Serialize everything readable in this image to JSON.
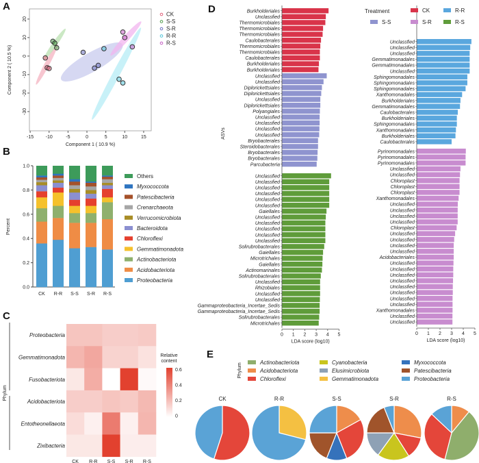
{
  "panel_labels": {
    "A": "A",
    "B": "B",
    "C": "C",
    "D": "D",
    "E": "E"
  },
  "colors": {
    "CK": "#d9344a",
    "S-S": "#8f94cf",
    "S-R": "#c88ccf",
    "R-R": "#5aa7de",
    "R-S": "#5f9c3a",
    "pca": {
      "CK": "#e0607a",
      "S-S": "#4f9a4a",
      "S-R": "#6a6fc0",
      "R-R": "#52c5d8",
      "R-S": "#c55fc4"
    },
    "pca_fill": {
      "CK": "#f4b3c0",
      "S-S": "#b9e0b0",
      "S-R": "#c8cbee",
      "R-R": "#b6ecf5",
      "R-S": "#f2b6ef"
    }
  },
  "chart_data": [
    {
      "panel": "A",
      "type": "scatter",
      "xlabel": "Component 1 ( 10.9 %)",
      "ylabel": "Component 2 ( 10.5 %)",
      "xlim": [
        -15.2,
        17
      ],
      "ylim": [
        -40.4,
        25.5
      ],
      "xticks": [
        -15,
        -10,
        -5,
        0,
        5,
        10,
        15
      ],
      "yticks": [
        20,
        10,
        0,
        -10,
        -20,
        -30
      ],
      "legend_position": "top-right",
      "series": [
        {
          "name": "CK",
          "points": [
            [
              -11,
              -1
            ],
            [
              -10.5,
              -6.3
            ],
            [
              -10,
              -6.7
            ]
          ],
          "ellipse": {
            "cx": -10.6,
            "cy": -4.5,
            "rx": 5.5,
            "ry": 0.8,
            "angle_deg": -62
          }
        },
        {
          "name": "S-S",
          "points": [
            [
              -9,
              8
            ],
            [
              -8.5,
              7
            ],
            [
              -8,
              4.5
            ]
          ],
          "ellipse": {
            "cx": -8.5,
            "cy": 6.5,
            "rx": 4.5,
            "ry": 0.8,
            "angle_deg": -55
          }
        },
        {
          "name": "S-R",
          "points": [
            [
              -1,
              2
            ],
            [
              2,
              -6.5
            ],
            [
              3,
              -5
            ]
          ],
          "ellipse": {
            "cx": 1.3,
            "cy": -3.2,
            "rx": 8.5,
            "ry": 3.2,
            "angle_deg": -30
          }
        },
        {
          "name": "R-R",
          "points": [
            [
              4.5,
              4
            ],
            [
              8.5,
              -12.5
            ],
            [
              9.5,
              -14.5
            ]
          ],
          "ellipse": {
            "cx": 7.8,
            "cy": -9.5,
            "rx": 12.5,
            "ry": 1.2,
            "angle_deg": -62
          }
        },
        {
          "name": "R-S",
          "points": [
            [
              9.5,
              13
            ],
            [
              10,
              10
            ],
            [
              12,
              5
            ]
          ],
          "ellipse": {
            "cx": 10.3,
            "cy": 9.5,
            "rx": 5.5,
            "ry": 1,
            "angle_deg": -48
          }
        }
      ]
    },
    {
      "panel": "B",
      "type": "bar",
      "stacked": true,
      "ylabel": "Percent",
      "ylim": [
        0,
        1
      ],
      "yticks": [
        "0.0",
        "0.2",
        "0.4",
        "0.6",
        "0.8",
        "1.0"
      ],
      "categories": [
        "CK",
        "R-R",
        "S-S",
        "S-R",
        "R-S"
      ],
      "legend_position": "right",
      "series": [
        {
          "name": "Proteobacteria",
          "color": "#4f9ed2",
          "values": [
            0.36,
            0.39,
            0.32,
            0.33,
            0.31
          ]
        },
        {
          "name": "Acidobacteriota",
          "color": "#ef8c45",
          "values": [
            0.18,
            0.18,
            0.21,
            0.2,
            0.25
          ]
        },
        {
          "name": "Actinobacteriota",
          "color": "#8fb06d",
          "values": [
            0.11,
            0.1,
            0.08,
            0.08,
            0.14
          ]
        },
        {
          "name": "Gemmatimonadota",
          "color": "#f5c12c",
          "values": [
            0.09,
            0.11,
            0.06,
            0.06,
            0.04
          ]
        },
        {
          "name": "Chloroflexi",
          "color": "#e5402e",
          "values": [
            0.05,
            0.04,
            0.05,
            0.06,
            0.07
          ]
        },
        {
          "name": "Bacteroidota",
          "color": "#8b8fd0",
          "values": [
            0.05,
            0.04,
            0.06,
            0.04,
            0.03
          ]
        },
        {
          "name": "Verrucomicrobiota",
          "color": "#a88d26",
          "values": [
            0.025,
            0.02,
            0.03,
            0.03,
            0.02
          ]
        },
        {
          "name": "Crenarchaeota",
          "color": "#a6a6a6",
          "values": [
            0.02,
            0.02,
            0.03,
            0.03,
            0.03
          ]
        },
        {
          "name": "Patescibacteria",
          "color": "#a5512a",
          "values": [
            0.02,
            0.02,
            0.03,
            0.03,
            0.02
          ]
        },
        {
          "name": "Myxococcota",
          "color": "#2e74c0",
          "values": [
            0.015,
            0.015,
            0.02,
            0.01,
            0.01
          ]
        },
        {
          "name": "Others",
          "color": "#3d9b5a",
          "values": [
            0.08,
            0.065,
            0.11,
            0.13,
            0.08
          ]
        }
      ]
    },
    {
      "panel": "C",
      "type": "heatmap",
      "ylabel": "Phylum",
      "columns": [
        "CK",
        "R-R",
        "S-S",
        "S-R",
        "R-S"
      ],
      "rows": [
        "Proteobacteria",
        "Gemmatimonadota",
        "Fusobacteriota",
        "Acidobacteriota",
        "Entotheonellaeota",
        "Zixibacteria"
      ],
      "values": [
        [
          0.2,
          0.2,
          0.17,
          0.17,
          0.18
        ],
        [
          0.25,
          0.3,
          0.15,
          0.15,
          0.1
        ],
        [
          0.08,
          0.28,
          0.0,
          0.65,
          0.02
        ],
        [
          0.17,
          0.17,
          0.2,
          0.18,
          0.24
        ],
        [
          0.12,
          0.05,
          0.45,
          0.05,
          0.25
        ],
        [
          0.08,
          0.08,
          0.65,
          0.06,
          0.06
        ]
      ],
      "colorbar": {
        "title": [
          "Relative",
          "content"
        ],
        "ticks": [
          "0.6",
          "0.4",
          "0.2",
          "0"
        ],
        "range": [
          0,
          0.65
        ],
        "low": "#ffffff",
        "high": "#e2412f"
      }
    },
    {
      "panel": "D",
      "type": "bar",
      "orientation": "horizontal",
      "ylabel": "ASVs",
      "xlabel": "LDA score (log10)",
      "xlim": [
        0,
        5
      ],
      "xticks": [
        "0",
        "1",
        "2",
        "3",
        "4",
        "5"
      ],
      "legend_title": "Treatment",
      "legend_position": "top-right",
      "legend_order": [
        "CK",
        "R-R",
        "S-S",
        "S-R",
        "R-S"
      ],
      "columns": [
        [
          {
            "group": "CK",
            "labels": [
              "Burkholderiales",
              "Unclassfied",
              "Thermomicrobiales",
              "Thermomicrobiales",
              "Thermomicrobiales",
              "Caulobacterales",
              "Thermomicrobiales",
              "Thermomicrobiales",
              "Caulobacterales",
              "Burkholderiales",
              "Burkholderiales"
            ],
            "values": [
              4.08,
              3.84,
              3.8,
              3.6,
              3.56,
              3.42,
              3.36,
              3.32,
              3.32,
              3.24,
              3.2
            ]
          },
          {
            "group": "S-S",
            "labels": [
              "Unclassfied",
              "Unclassfied",
              "Diplorickettsiales",
              "Diplorickettsiales",
              "Unclassfied",
              "Diplorickettsiales",
              "Polyangiales",
              "Unclassfied",
              "Unclassfied",
              "Unclassfied",
              "Unclassfied",
              "Bryobacterales",
              "Steroidobacterales",
              "Bryobacterales",
              "Bryobacterales",
              "Parcubacteria"
            ],
            "values": [
              3.92,
              3.64,
              3.5,
              3.44,
              3.36,
              3.36,
              3.32,
              3.3,
              3.3,
              3.28,
              3.26,
              3.16,
              3.16,
              3.12,
              3.1,
              3.04
            ]
          },
          {
            "group": "R-S",
            "labels": [
              "Unclassfied",
              "Unclassfied",
              "Unclassfied",
              "Unclassfied",
              "Unclassfied",
              "Unclassfied",
              "Gaiellales",
              "Unclassfied",
              "Unclassfied",
              "Unclassfied",
              "Unclassfied",
              "Unclassfied",
              "Solirubrobacterales",
              "Gaiellales",
              "Microtrichales",
              "Gaiellales",
              "Actinomarinales",
              "Solirubrobacterales",
              "Unclassfied",
              "Rhizobiales",
              "Unclassfied",
              "Unclassfied",
              "Gammaproteobacteria_Incertae_Sedis",
              "Gammaproteobacteria_Incertae_Sedis",
              "Solirubrobacterales",
              "Microtrichales"
            ],
            "values": [
              4.3,
              4.14,
              4.14,
              4.14,
              4.14,
              4.14,
              3.9,
              3.84,
              3.8,
              3.8,
              3.8,
              3.8,
              3.7,
              3.6,
              3.56,
              3.54,
              3.5,
              3.4,
              3.34,
              3.34,
              3.34,
              3.32,
              3.3,
              3.3,
              3.26,
              3.22
            ]
          }
        ],
        [
          {
            "group": "R-R",
            "labels": [
              "Unclassfied",
              "Unclassfied",
              "Unclassfied",
              "Gemmatimonadales",
              "Gemmatimonadales",
              "Unclassfied",
              "Sphingomonadales",
              "Sphingomonadales",
              "Sphingomonadales",
              "Xanthomonadales",
              "Burkholderiales",
              "Gemmatimonadales",
              "Caulobacterales",
              "Burkholderiales",
              "Sphingomonadales",
              "Xanthomonadales",
              "Burkholderiales",
              "Caulobacterales"
            ],
            "values": [
              4.7,
              4.6,
              4.55,
              4.55,
              4.55,
              4.55,
              4.35,
              4.35,
              4.2,
              3.9,
              3.76,
              3.72,
              3.53,
              3.45,
              3.45,
              3.37,
              3.33,
              3.0
            ]
          },
          {
            "group": "S-R",
            "labels": [
              "Pyrinomonadales",
              "Pyrinomonadales",
              "Pyrinomonadales",
              "Unclassfied",
              "Unclassfied",
              "Chloroplast",
              "Chloroplast",
              "Chloroplast",
              "Xanthomonadales",
              "Unclassfied",
              "Unclassfied",
              "Unclassfied",
              "Unclassfied",
              "Chloroplast",
              "Unclassfied",
              "Unclassfied",
              "Unclassfied",
              "Unclassfied",
              "Acidobacteriales",
              "Unclassfied",
              "Unclassfied",
              "Unclassfied",
              "Unclassfied",
              "Unclassfied",
              "Unclassfied",
              "Unclassfied",
              "Unclassfied",
              "Xanthomonadales",
              "Unclassfied",
              "Unclassfied"
            ],
            "values": [
              4.22,
              4.2,
              4.2,
              3.76,
              3.72,
              3.68,
              3.68,
              3.68,
              3.6,
              3.53,
              3.52,
              3.52,
              3.52,
              3.43,
              3.3,
              3.22,
              3.18,
              3.18,
              3.18,
              3.16,
              3.14,
              3.14,
              3.12,
              3.1,
              3.1,
              3.08,
              3.08,
              3.08,
              3.07,
              3.07
            ]
          }
        ]
      ]
    },
    {
      "panel": "E",
      "type": "pie",
      "legend_title": "Phylum",
      "legend": [
        {
          "name": "Actinobacteriota",
          "color": "#8fae6c"
        },
        {
          "name": "Acidobacteriota",
          "color": "#ee8d4b"
        },
        {
          "name": "Chloroflexi",
          "color": "#e4463a"
        },
        {
          "name": "Cyanobacteria",
          "color": "#c9c51e"
        },
        {
          "name": "Elusimicrobiota",
          "color": "#8ea1b5"
        },
        {
          "name": "Gemmatimonadota",
          "color": "#f4c042"
        },
        {
          "name": "Myxococcota",
          "color": "#3572bb"
        },
        {
          "name": "Patescibacteria",
          "color": "#a0542b"
        },
        {
          "name": "Proteobacteria",
          "color": "#5aa3d6"
        }
      ],
      "pies": [
        {
          "title": "CK",
          "slices": [
            {
              "name": "Chloroflexi",
              "value": 0.55
            },
            {
              "name": "Proteobacteria",
              "value": 0.45
            }
          ]
        },
        {
          "title": "R-R",
          "slices": [
            {
              "name": "Gemmatimonadota",
              "value": 0.29
            },
            {
              "name": "Proteobacteria",
              "value": 0.71
            }
          ]
        },
        {
          "title": "S-S",
          "slices": [
            {
              "name": "Acidobacteriota",
              "value": 0.17
            },
            {
              "name": "Chloroflexi",
              "value": 0.27
            },
            {
              "name": "Myxococcota",
              "value": 0.12
            },
            {
              "name": "Patescibacteria",
              "value": 0.19
            },
            {
              "name": "Proteobacteria",
              "value": 0.25
            }
          ]
        },
        {
          "title": "S-R",
          "slices": [
            {
              "name": "Acidobacteriota",
              "value": 0.28
            },
            {
              "name": "Chloroflexi",
              "value": 0.13
            },
            {
              "name": "Cyanobacteria",
              "value": 0.19
            },
            {
              "name": "Elusimicrobiota",
              "value": 0.15
            },
            {
              "name": "Patescibacteria",
              "value": 0.19
            },
            {
              "name": "Proteobacteria",
              "value": 0.06
            }
          ]
        },
        {
          "title": "R-S",
          "slices": [
            {
              "name": "Acidobacteriota",
              "value": 0.11
            },
            {
              "name": "Actinobacteriota",
              "value": 0.43
            },
            {
              "name": "Chloroflexi",
              "value": 0.33
            },
            {
              "name": "Proteobacteria",
              "value": 0.13
            }
          ]
        }
      ]
    }
  ]
}
